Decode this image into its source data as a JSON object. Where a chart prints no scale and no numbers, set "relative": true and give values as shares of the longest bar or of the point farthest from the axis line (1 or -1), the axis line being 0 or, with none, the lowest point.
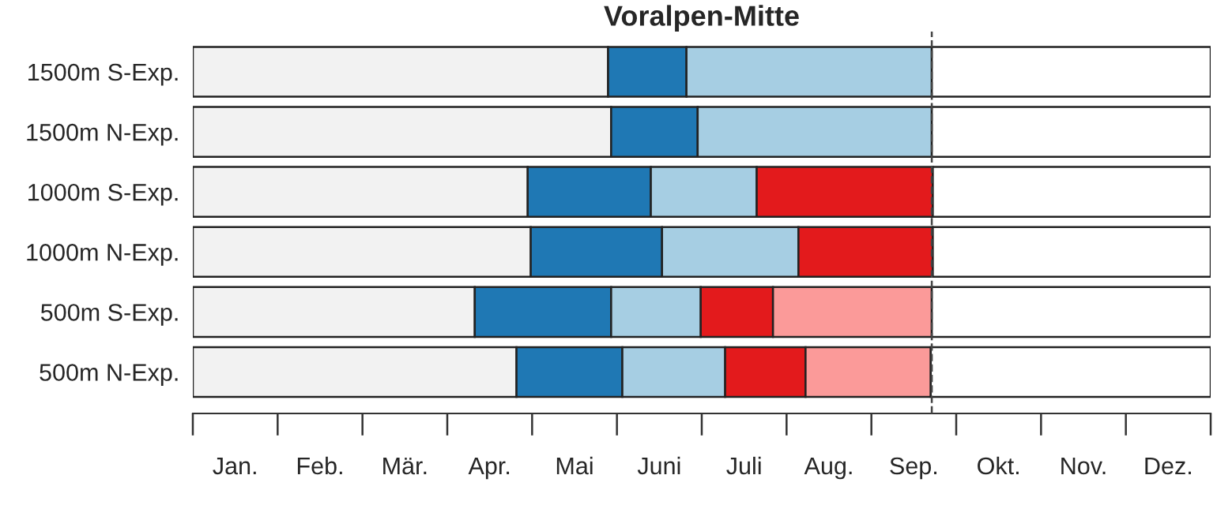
{
  "chart_data": {
    "type": "bar",
    "orientation": "horizontal",
    "stacked": true,
    "relative": true,
    "title": "Voralpen-Mitte",
    "categories": [
      "1500m S-Exp.",
      "1500m N-Exp.",
      "1000m S-Exp.",
      "1000m N-Exp.",
      "500m S-Exp.",
      "500m N-Exp."
    ],
    "series": [
      {
        "color": "#f2f2f2",
        "values": [
          0.408,
          0.411,
          0.329,
          0.332,
          0.277,
          0.318
        ]
      },
      {
        "color": "#1f78b4",
        "values": [
          0.077,
          0.085,
          0.121,
          0.129,
          0.134,
          0.104
        ]
      },
      {
        "color": "#a6cee3",
        "values": [
          0.241,
          0.23,
          0.104,
          0.134,
          0.088,
          0.101
        ]
      },
      {
        "color": "#e31a1c",
        "values": [
          null,
          null,
          0.173,
          0.132,
          0.071,
          0.079
        ]
      },
      {
        "color": "#fb9a99",
        "values": [
          null,
          null,
          null,
          null,
          0.156,
          0.123
        ]
      },
      {
        "color": "#ffffff",
        "values": [
          0.274,
          0.274,
          0.273,
          0.273,
          0.274,
          0.275
        ]
      }
    ],
    "annotations": [
      "Jan.",
      "Feb.",
      "Mär.",
      "Apr.",
      "Mai",
      "Juni",
      "Juli",
      "Aug.",
      "Sep.",
      "Okt.",
      "Nov.",
      "Dez."
    ],
    "ref_lines": [
      {
        "axis": "x",
        "value": 0.726,
        "color": "#444444",
        "line_style": "dashed"
      }
    ],
    "grid": false,
    "legend": false
  }
}
